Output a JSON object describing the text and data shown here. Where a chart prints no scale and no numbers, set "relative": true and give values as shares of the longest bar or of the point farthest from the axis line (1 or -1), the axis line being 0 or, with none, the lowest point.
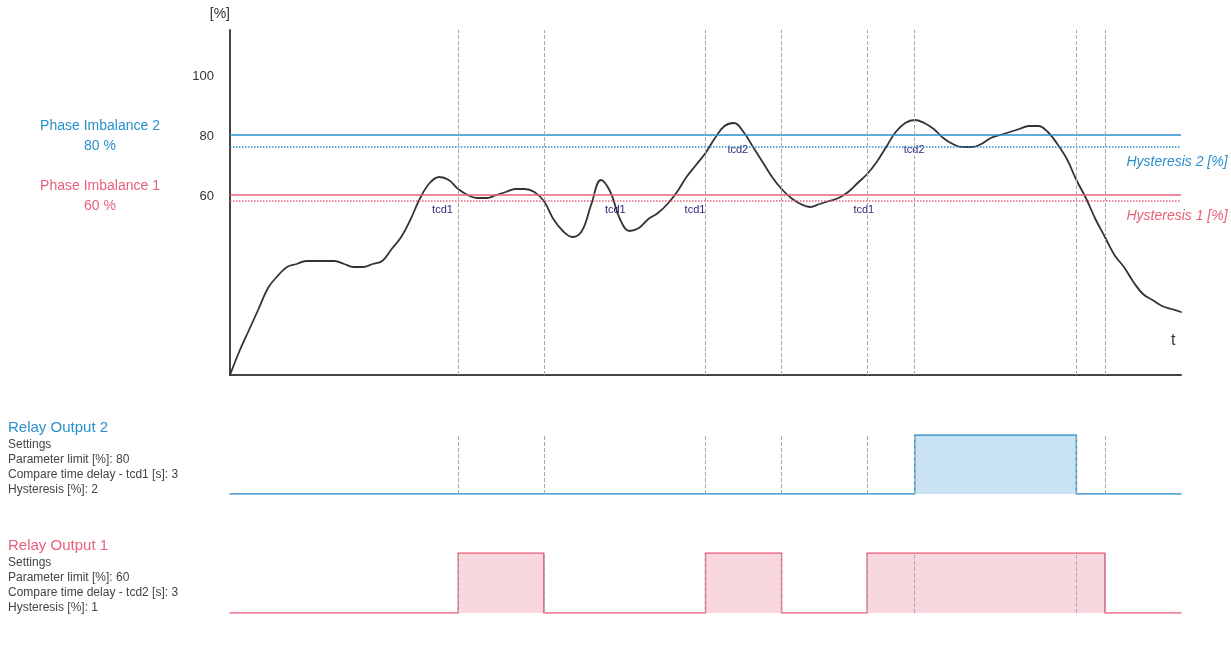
{
  "chart_data": [
    {
      "type": "line",
      "ylabel": "[%]",
      "xlabel": "t",
      "categories": [
        null,
        null,
        null,
        null,
        null,
        null,
        null,
        null,
        null,
        null,
        null,
        null,
        null,
        null,
        null,
        null,
        null,
        null,
        null,
        null,
        null,
        null,
        null,
        null,
        null,
        null,
        null,
        null,
        null,
        null,
        null,
        null,
        null,
        null,
        null,
        null,
        null,
        null,
        null,
        null,
        null,
        null,
        null,
        null,
        null,
        null,
        null,
        null,
        null,
        null,
        null,
        null,
        null,
        null,
        null,
        null,
        null,
        null,
        null,
        null,
        null,
        null,
        null,
        null,
        null,
        null,
        null,
        null,
        null,
        null,
        null,
        null,
        null,
        null,
        null,
        null,
        null,
        null,
        null,
        null,
        null,
        null,
        null,
        null,
        null,
        null,
        null,
        null,
        null,
        null,
        null,
        null,
        null,
        null,
        null,
        null,
        null,
        null,
        null,
        null,
        null
      ],
      "series": [
        {
          "color": "#333333",
          "values": [
            0,
            8,
            15,
            22,
            29,
            33,
            36,
            37,
            38,
            38,
            38,
            38,
            37,
            36,
            36,
            37,
            38,
            42,
            46,
            52,
            59,
            64,
            66,
            65,
            62,
            60,
            59,
            59,
            60,
            61,
            62,
            62,
            61,
            58,
            52,
            48,
            46,
            48,
            57,
            65,
            61,
            52,
            48,
            49,
            52,
            54,
            57,
            61,
            66,
            70,
            74,
            79,
            83,
            84,
            81,
            76,
            71,
            66,
            62,
            59,
            57,
            56,
            57,
            58,
            59,
            61,
            64,
            67,
            71,
            76,
            81,
            84,
            85,
            84,
            82,
            79,
            77,
            76,
            76,
            77,
            79,
            80,
            81,
            82,
            83,
            83,
            81,
            77,
            72,
            65,
            59,
            52,
            46,
            40,
            36,
            31,
            27,
            25,
            23,
            22,
            21
          ]
        }
      ],
      "ylim": [
        0,
        115
      ],
      "yticks": [
        60,
        80,
        100
      ],
      "grid": "x",
      "marker": "none",
      "line_style": "solid",
      "tick_labels": "y",
      "ref_lines": [
        {
          "axis": "y",
          "value": 80,
          "label": "Phase Imbalance 2\n80 %",
          "color": "#2a8fcc",
          "line_style": "solid"
        },
        {
          "axis": "y",
          "value": 76,
          "label": "Hysteresis 2 [%]",
          "color": "#2a8fcc",
          "line_style": "dotted"
        },
        {
          "axis": "y",
          "value": 60,
          "label": "Phase Imbalance 1\n60 %",
          "color": "#e8607a",
          "line_style": "solid"
        },
        {
          "axis": "y",
          "value": 58,
          "label": "Hysteresis 1 [%]",
          "color": "#e8607a",
          "line_style": "dotted"
        }
      ],
      "annotations": [
        {
          "text": "tcd1",
          "y": 60
        },
        {
          "text": "tcd1",
          "y": 60
        },
        {
          "text": "tcd1",
          "y": 60
        },
        {
          "text": "tcd2",
          "y": 80
        },
        {
          "text": "tcd1",
          "y": 60
        },
        {
          "text": "tcd2",
          "y": 80
        }
      ]
    },
    {
      "type": "step",
      "relative": true,
      "grid": "x",
      "tick_labels": false,
      "categories": [
        null,
        null,
        null,
        null,
        null,
        null,
        null,
        null,
        null,
        null,
        null,
        null,
        null,
        null,
        null,
        null,
        null,
        null,
        null,
        null,
        null,
        null,
        null,
        null,
        null,
        null,
        null,
        null,
        null,
        null,
        null,
        null,
        null,
        null,
        null,
        null,
        null,
        null,
        null,
        null,
        null,
        null,
        null,
        null,
        null,
        null,
        null,
        null,
        null,
        null,
        null,
        null,
        null,
        null,
        null,
        null,
        null,
        null,
        null,
        null,
        null,
        null,
        null,
        null,
        null,
        null,
        null,
        null,
        null,
        null,
        null,
        null,
        null,
        null,
        null,
        null,
        null,
        null,
        null,
        null,
        null,
        null,
        null,
        null,
        null,
        null,
        null,
        null,
        null,
        null,
        null,
        null,
        null,
        null,
        null,
        null,
        null,
        null,
        null,
        null,
        null
      ],
      "series": [
        {
          "name": "Relay Output 2",
          "color": "#2a8fcc",
          "values": [
            0,
            0,
            0,
            0,
            0,
            0,
            0,
            0,
            0,
            0,
            0,
            0,
            0,
            0,
            0,
            0,
            0,
            0,
            0,
            0,
            0,
            0,
            0,
            0,
            0,
            0,
            0,
            0,
            0,
            0,
            0,
            0,
            0,
            0,
            0,
            0,
            0,
            0,
            0,
            0,
            0,
            0,
            0,
            0,
            0,
            0,
            0,
            0,
            0,
            0,
            0,
            0,
            0,
            0,
            0,
            0,
            0,
            0,
            0,
            0,
            0,
            0,
            0,
            0,
            0,
            0,
            0,
            0,
            0,
            0,
            0,
            0,
            1,
            1,
            1,
            1,
            1,
            1,
            1,
            1,
            1,
            1,
            1,
            1,
            1,
            1,
            1,
            1,
            1,
            0,
            0,
            0,
            0,
            0,
            0,
            0,
            0,
            0,
            0,
            0,
            0
          ]
        }
      ],
      "annotations": [
        "Settings",
        "Parameter limit [%]: 80",
        "Compare time delay - tcd1 [s]: 3",
        "Hysteresis [%]: 2"
      ]
    },
    {
      "type": "step",
      "relative": true,
      "grid": "x",
      "tick_labels": false,
      "categories": [
        null,
        null,
        null,
        null,
        null,
        null,
        null,
        null,
        null,
        null,
        null,
        null,
        null,
        null,
        null,
        null,
        null,
        null,
        null,
        null,
        null,
        null,
        null,
        null,
        null,
        null,
        null,
        null,
        null,
        null,
        null,
        null,
        null,
        null,
        null,
        null,
        null,
        null,
        null,
        null,
        null,
        null,
        null,
        null,
        null,
        null,
        null,
        null,
        null,
        null,
        null,
        null,
        null,
        null,
        null,
        null,
        null,
        null,
        null,
        null,
        null,
        null,
        null,
        null,
        null,
        null,
        null,
        null,
        null,
        null,
        null,
        null,
        null,
        null,
        null,
        null,
        null,
        null,
        null,
        null,
        null,
        null,
        null,
        null,
        null,
        null,
        null,
        null,
        null,
        null,
        null,
        null,
        null,
        null,
        null,
        null,
        null,
        null,
        null,
        null,
        null
      ],
      "series": [
        {
          "name": "Relay Output 1",
          "color": "#e8607a",
          "values": [
            0,
            0,
            0,
            0,
            0,
            0,
            0,
            0,
            0,
            0,
            0,
            0,
            0,
            0,
            0,
            0,
            0,
            0,
            0,
            0,
            0,
            0,
            0,
            0,
            1,
            1,
            1,
            1,
            1,
            1,
            1,
            1,
            1,
            0,
            0,
            0,
            0,
            0,
            0,
            0,
            0,
            0,
            0,
            0,
            0,
            0,
            0,
            0,
            0,
            0,
            1,
            1,
            1,
            1,
            1,
            1,
            1,
            1,
            0,
            0,
            0,
            0,
            0,
            0,
            0,
            0,
            0,
            1,
            1,
            1,
            1,
            1,
            1,
            1,
            1,
            1,
            1,
            1,
            1,
            1,
            1,
            1,
            1,
            1,
            1,
            1,
            1,
            1,
            1,
            1,
            1,
            1,
            0,
            0,
            0,
            0,
            0,
            0,
            0,
            0,
            0
          ]
        }
      ],
      "annotations": [
        "Settings",
        "Parameter limit [%]: 60",
        "Compare time delay - tcd2 [s]: 3",
        "Hysteresis [%]: 1"
      ]
    }
  ]
}
